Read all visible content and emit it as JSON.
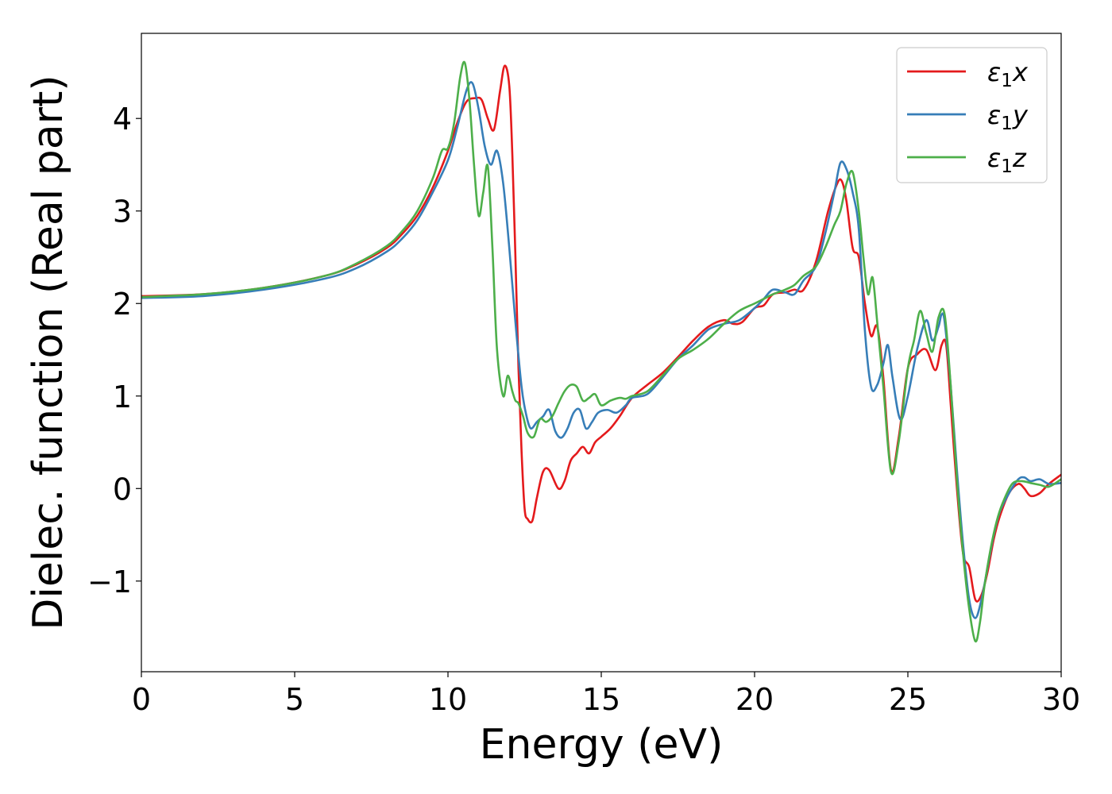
{
  "chart_data": {
    "type": "line",
    "xlabel": "Energy (eV)",
    "ylabel": "Dielec. function (Real part)",
    "xlim": [
      0,
      30
    ],
    "ylim": [
      -1.98,
      4.92
    ],
    "xticks": [
      0,
      5,
      10,
      15,
      20,
      25,
      30
    ],
    "xtick_labels": [
      "0",
      "5",
      "10",
      "15",
      "20",
      "25",
      "30"
    ],
    "yticks": [
      -1,
      0,
      1,
      2,
      3,
      4
    ],
    "ytick_labels": [
      "−1",
      "0",
      "1",
      "2",
      "3",
      "4"
    ],
    "grid": false,
    "legend_position": "top-right",
    "series": [
      {
        "name": "ε₁x",
        "legend_main": "ε",
        "legend_sub": "1",
        "legend_var": "x",
        "color": "#e41a1c",
        "x": [
          0,
          2,
          4,
          6,
          7,
          8,
          8.5,
          9,
          9.5,
          10,
          10.3,
          10.6,
          10.9,
          11.1,
          11.3,
          11.5,
          11.7,
          11.85,
          12.0,
          12.1,
          12.2,
          12.3,
          12.4,
          12.5,
          12.6,
          12.75,
          12.9,
          13.1,
          13.3,
          13.6,
          13.8,
          14.0,
          14.2,
          14.4,
          14.6,
          14.8,
          15.0,
          15.3,
          15.6,
          16.0,
          16.5,
          17.0,
          17.5,
          18.0,
          18.5,
          19.0,
          19.3,
          19.6,
          20.0,
          20.3,
          20.6,
          21.0,
          21.3,
          21.6,
          22.0,
          22.4,
          22.7,
          22.85,
          23.0,
          23.2,
          23.4,
          23.6,
          23.8,
          24.0,
          24.2,
          24.45,
          24.7,
          25.0,
          25.3,
          25.6,
          25.9,
          26.1,
          26.25,
          26.4,
          26.6,
          26.8,
          27.0,
          27.2,
          27.4,
          27.6,
          27.8,
          28.0,
          28.3,
          28.6,
          28.8,
          29.0,
          29.3,
          29.6,
          30.0
        ],
        "y": [
          2.08,
          2.1,
          2.17,
          2.3,
          2.42,
          2.6,
          2.75,
          2.95,
          3.25,
          3.65,
          3.95,
          4.18,
          4.22,
          4.2,
          4.0,
          3.88,
          4.3,
          4.57,
          4.35,
          3.6,
          2.5,
          1.3,
          0.4,
          -0.22,
          -0.33,
          -0.35,
          -0.1,
          0.18,
          0.2,
          0.0,
          0.08,
          0.3,
          0.38,
          0.45,
          0.38,
          0.5,
          0.56,
          0.65,
          0.78,
          0.98,
          1.12,
          1.25,
          1.42,
          1.6,
          1.75,
          1.82,
          1.78,
          1.8,
          1.95,
          1.98,
          2.1,
          2.12,
          2.15,
          2.15,
          2.45,
          3.0,
          3.3,
          3.32,
          3.1,
          2.6,
          2.5,
          2.0,
          1.65,
          1.75,
          1.2,
          0.2,
          0.55,
          1.3,
          1.45,
          1.5,
          1.28,
          1.55,
          1.55,
          0.9,
          0.0,
          -0.7,
          -0.85,
          -1.2,
          -1.15,
          -0.9,
          -0.55,
          -0.3,
          -0.05,
          0.05,
          0.0,
          -0.08,
          -0.05,
          0.05,
          0.15
        ]
      },
      {
        "name": "ε₁y",
        "legend_main": "ε",
        "legend_sub": "1",
        "legend_var": "y",
        "color": "#377eb8",
        "x": [
          0,
          2,
          4,
          6,
          7,
          8,
          8.5,
          9,
          9.5,
          10,
          10.3,
          10.6,
          10.8,
          11.0,
          11.2,
          11.4,
          11.6,
          11.8,
          12.0,
          12.2,
          12.4,
          12.55,
          12.7,
          12.9,
          13.1,
          13.3,
          13.5,
          13.7,
          13.9,
          14.1,
          14.3,
          14.5,
          14.7,
          14.9,
          15.2,
          15.5,
          15.8,
          16.0,
          16.5,
          17.0,
          17.5,
          18.0,
          18.5,
          19.0,
          19.5,
          20.0,
          20.3,
          20.6,
          21.0,
          21.3,
          21.6,
          22.0,
          22.3,
          22.6,
          22.8,
          23.0,
          23.2,
          23.4,
          23.6,
          23.8,
          24.0,
          24.2,
          24.35,
          24.5,
          24.75,
          25.0,
          25.3,
          25.6,
          25.8,
          26.0,
          26.1,
          26.2,
          26.4,
          26.6,
          26.8,
          27.0,
          27.2,
          27.4,
          27.6,
          27.8,
          28.0,
          28.3,
          28.6,
          28.8,
          29.0,
          29.3,
          29.6,
          30.0
        ],
        "y": [
          2.06,
          2.08,
          2.15,
          2.27,
          2.38,
          2.56,
          2.7,
          2.9,
          3.2,
          3.55,
          3.9,
          4.3,
          4.38,
          4.1,
          3.7,
          3.5,
          3.65,
          3.3,
          2.6,
          1.8,
          1.1,
          0.8,
          0.65,
          0.72,
          0.78,
          0.85,
          0.62,
          0.55,
          0.65,
          0.82,
          0.85,
          0.65,
          0.72,
          0.82,
          0.85,
          0.82,
          0.9,
          0.98,
          1.02,
          1.2,
          1.4,
          1.55,
          1.72,
          1.78,
          1.82,
          1.95,
          2.05,
          2.15,
          2.12,
          2.1,
          2.25,
          2.4,
          2.75,
          3.2,
          3.52,
          3.45,
          3.2,
          2.8,
          1.7,
          1.1,
          1.12,
          1.35,
          1.55,
          1.2,
          0.75,
          1.0,
          1.5,
          1.82,
          1.6,
          1.75,
          1.88,
          1.8,
          1.1,
          0.2,
          -0.6,
          -1.2,
          -1.4,
          -1.2,
          -0.85,
          -0.5,
          -0.25,
          -0.05,
          0.1,
          0.12,
          0.08,
          0.1,
          0.05,
          0.06
        ]
      },
      {
        "name": "ε₁z",
        "legend_main": "ε",
        "legend_sub": "1",
        "legend_var": "z",
        "color": "#4daf4a",
        "x": [
          0,
          2,
          4,
          6,
          7,
          8,
          8.5,
          9,
          9.5,
          9.8,
          10.0,
          10.2,
          10.4,
          10.55,
          10.7,
          10.85,
          11.0,
          11.15,
          11.3,
          11.45,
          11.6,
          11.8,
          11.95,
          12.1,
          12.2,
          12.3,
          12.45,
          12.6,
          12.8,
          13.0,
          13.2,
          13.4,
          13.6,
          13.8,
          14.0,
          14.2,
          14.4,
          14.6,
          14.8,
          15.0,
          15.3,
          15.6,
          15.8,
          16.0,
          16.5,
          17.0,
          17.5,
          18.0,
          18.5,
          19.0,
          19.5,
          20.0,
          20.3,
          20.6,
          21.0,
          21.3,
          21.6,
          22.0,
          22.3,
          22.6,
          22.8,
          23.0,
          23.2,
          23.4,
          23.55,
          23.7,
          23.85,
          24.0,
          24.2,
          24.45,
          24.7,
          25.0,
          25.2,
          25.4,
          25.6,
          25.8,
          26.0,
          26.2,
          26.4,
          26.6,
          26.8,
          27.0,
          27.2,
          27.35,
          27.5,
          27.7,
          27.9,
          28.1,
          28.4,
          28.7,
          29.0,
          29.3,
          29.6,
          30.0
        ],
        "y": [
          2.07,
          2.1,
          2.17,
          2.3,
          2.43,
          2.62,
          2.78,
          3.0,
          3.35,
          3.65,
          3.68,
          3.95,
          4.45,
          4.6,
          4.2,
          3.5,
          2.95,
          3.2,
          3.48,
          2.6,
          1.5,
          1.0,
          1.22,
          1.05,
          0.95,
          0.92,
          0.78,
          0.6,
          0.56,
          0.75,
          0.72,
          0.78,
          0.92,
          1.05,
          1.12,
          1.1,
          0.95,
          0.98,
          1.02,
          0.9,
          0.95,
          0.98,
          0.97,
          1.0,
          1.05,
          1.22,
          1.4,
          1.5,
          1.62,
          1.78,
          1.92,
          2.0,
          2.05,
          2.1,
          2.15,
          2.2,
          2.3,
          2.4,
          2.6,
          2.85,
          3.0,
          3.3,
          3.42,
          3.0,
          2.5,
          2.1,
          2.28,
          1.8,
          1.1,
          0.18,
          0.5,
          1.3,
          1.6,
          1.92,
          1.68,
          1.48,
          1.85,
          1.88,
          1.1,
          0.1,
          -0.7,
          -1.3,
          -1.65,
          -1.45,
          -1.05,
          -0.65,
          -0.35,
          -0.15,
          0.05,
          0.08,
          0.06,
          0.04,
          0.02,
          0.1
        ]
      }
    ]
  }
}
